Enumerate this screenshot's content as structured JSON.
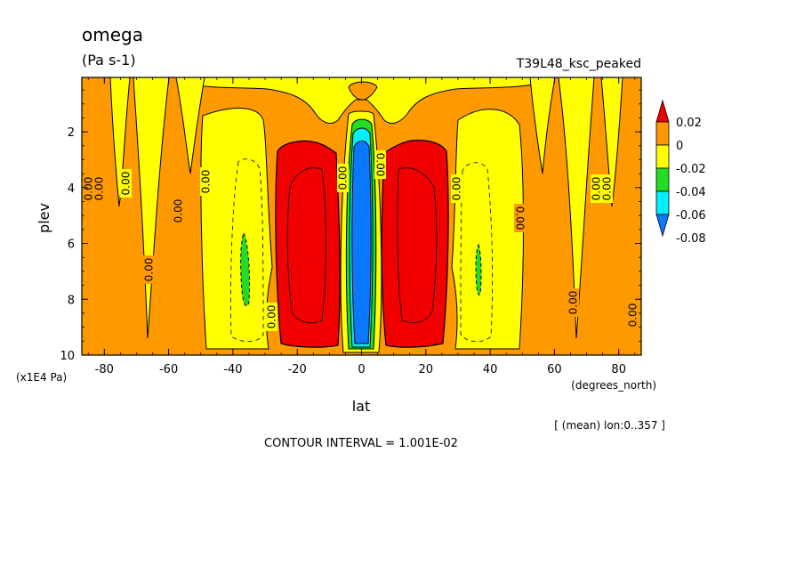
{
  "chart_data": {
    "type": "heatmap",
    "title": "omega",
    "units": "(Pa s-1)",
    "run_label": "T39L48_ksc_peaked",
    "xlabel": "lat",
    "x_units": "(degrees_north)",
    "ylabel": "plev",
    "y_units": "(x1E4 Pa)",
    "xlim": [
      -87,
      87
    ],
    "ylim": [
      0.05,
      10
    ],
    "y_inverted": true,
    "x_ticks": [
      -80,
      -60,
      -40,
      -20,
      0,
      20,
      40,
      60,
      80
    ],
    "y_ticks": [
      2,
      4,
      6,
      8,
      10
    ],
    "subset_note": "[ (mean) lon:0..357 ]",
    "contour_interval_text": "CONTOUR INTERVAL = 1.001E-02",
    "colorbar": {
      "levels": [
        "0.02",
        "0",
        "-0.02",
        "-0.04",
        "-0.06",
        "-0.08"
      ],
      "colors": [
        "#f00000",
        "#ff9900",
        "#ffff00",
        "#22dd22",
        "#00f0ff",
        "#0a78ff"
      ]
    },
    "contour_labels": [
      "0.00"
    ],
    "regions": [
      {
        "name": "southern-red-cell",
        "value_range": ">0.02",
        "lat": [
          -27,
          -7
        ],
        "plev": [
          2.7,
          9.6
        ]
      },
      {
        "name": "northern-red-cell",
        "value_range": ">0.02",
        "lat": [
          7,
          27
        ],
        "plev": [
          2.7,
          9.6
        ]
      },
      {
        "name": "equatorial-blue-cell",
        "value_range": "<-0.06",
        "lat": [
          -4,
          4
        ],
        "plev": [
          2.0,
          9.6
        ]
      },
      {
        "name": "southern-green-patch",
        "value_range": "-0.04..-0.02",
        "lat": [
          -38,
          -36
        ],
        "plev": [
          5.8,
          8.4
        ]
      },
      {
        "name": "northern-green-patch",
        "value_range": "-0.04..-0.02",
        "lat": [
          36,
          37
        ],
        "plev": [
          6.2,
          8.2
        ]
      }
    ]
  }
}
